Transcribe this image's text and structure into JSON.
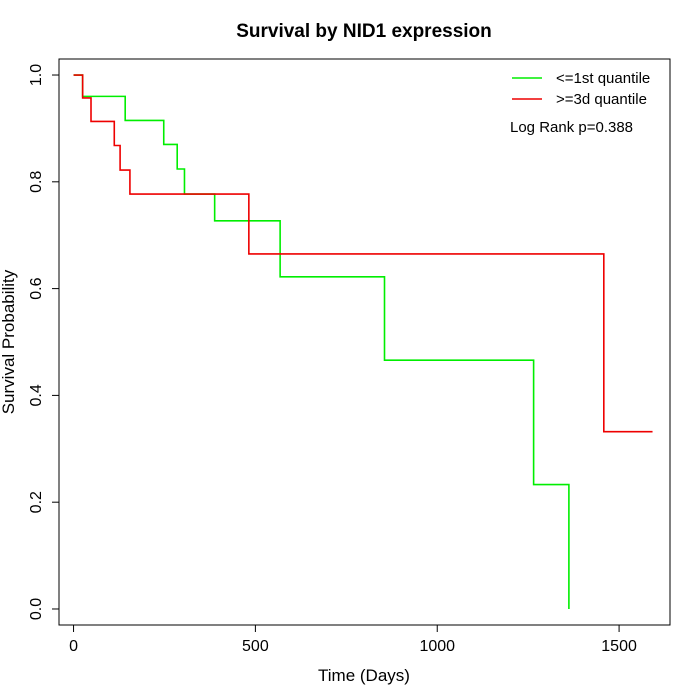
{
  "chart_data": {
    "type": "line",
    "title": "Survival by NID1 expression",
    "xlabel": "Time (Days)",
    "ylabel": "Survival Probability",
    "xlim": [
      -40,
      1640
    ],
    "ylim": [
      -0.03,
      1.03
    ],
    "x_ticks": [
      0,
      500,
      1000,
      1500
    ],
    "y_ticks": [
      0.0,
      0.2,
      0.4,
      0.6,
      0.8,
      1.0
    ],
    "x_tick_labels": [
      "0",
      "500",
      "1000",
      "1500"
    ],
    "y_tick_labels": [
      "0.0",
      "0.2",
      "0.4",
      "0.6",
      "0.8",
      "1.0"
    ],
    "grid": false,
    "legend_position": "top-right",
    "annotation": "Log Rank p=0.388",
    "series": [
      {
        "name": "<=1st quantile",
        "color": "#00ee00",
        "step_x": [
          0,
          25,
          142,
          248,
          285,
          305,
          388,
          568,
          855,
          1265,
          1362
        ],
        "step_y": [
          1.0,
          0.96,
          0.915,
          0.87,
          0.824,
          0.777,
          0.727,
          0.622,
          0.466,
          0.233,
          0.0
        ],
        "end_x": 1362
      },
      {
        "name": ">=3d quantile",
        "color": "#ee0000",
        "step_x": [
          0,
          25,
          48,
          112,
          128,
          155,
          482,
          1458
        ],
        "step_y": [
          1.0,
          0.957,
          0.913,
          0.868,
          0.822,
          0.777,
          0.665,
          0.332
        ],
        "end_x": 1592
      }
    ]
  }
}
